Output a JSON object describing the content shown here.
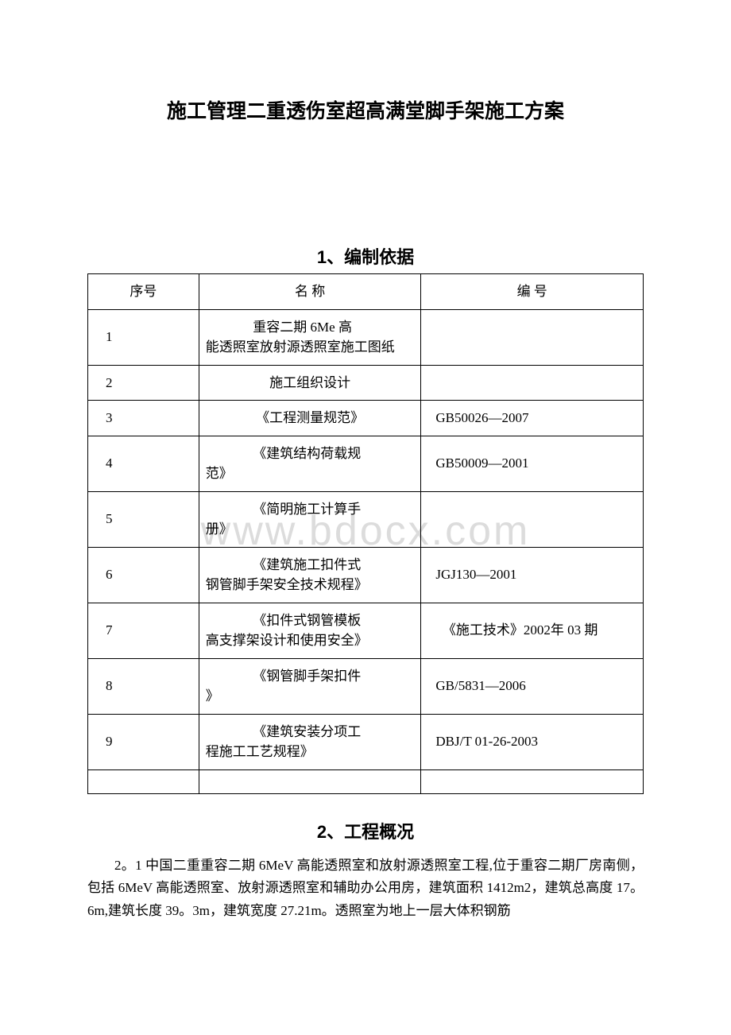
{
  "doc": {
    "title": "施工管理二重透伤室超高满堂脚手架施工方案"
  },
  "watermark": "www.bdocx.com",
  "section1": {
    "title": "1、编制依据",
    "table": {
      "headers": {
        "num": "序号",
        "name": "名 称",
        "code": "编 号"
      },
      "rows": [
        {
          "num": "1",
          "name_first": "重容二期 6Me 高",
          "name_rest": "能透照室放射源透照室施工图纸",
          "code": ""
        },
        {
          "num": "2",
          "name_first": "施工组织设计",
          "name_rest": "",
          "code": ""
        },
        {
          "num": "3",
          "name_first": "《工程测量规范》",
          "name_rest": "",
          "code": "GB50026—2007"
        },
        {
          "num": "4",
          "name_first": "《建筑结构荷载规",
          "name_rest": "范》",
          "code": "GB50009—2001"
        },
        {
          "num": "5",
          "name_first": "《简明施工计算手",
          "name_rest": "册》",
          "code": ""
        },
        {
          "num": "6",
          "name_first": "《建筑施工扣件式",
          "name_rest": "钢管脚手架安全技术规程》",
          "code": "JGJ130—2001"
        },
        {
          "num": "7",
          "name_first": "《扣件式钢管模板",
          "name_rest": "高支撑架设计和使用安全》",
          "code": "　《施工技术》2002年 03 期"
        },
        {
          "num": "8",
          "name_first": "《钢管脚手架扣件",
          "name_rest": "》",
          "code": "GB/5831—2006"
        },
        {
          "num": "9",
          "name_first": "《建筑安装分项工",
          "name_rest": "程施工工艺规程》",
          "code": "DBJ/T 01-26-2003"
        }
      ]
    }
  },
  "section2": {
    "title": "2、工程概况",
    "body": "2。1 中国二重重容二期 6MeV 高能透照室和放射源透照室工程,位于重容二期厂房南侧，包括 6MeV 高能透照室、放射源透照室和辅助办公用房，建筑面积 1412m2，建筑总高度 17。6m,建筑长度 39。3m，建筑宽度 27.21m。透照室为地上一层大体积钢筋"
  }
}
